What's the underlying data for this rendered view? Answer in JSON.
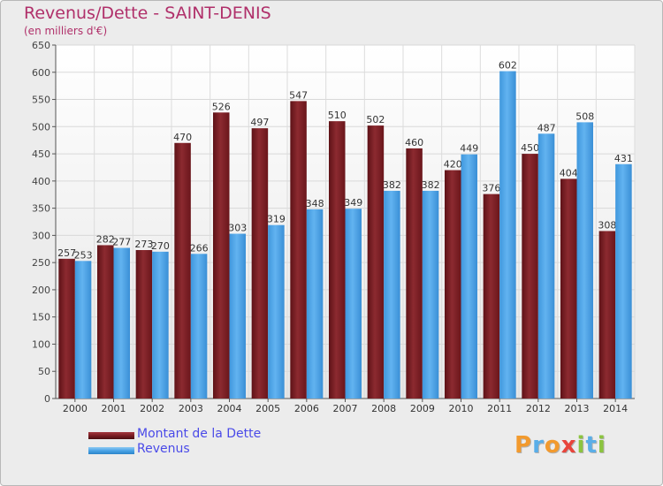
{
  "header": {
    "title": "Revenus/Dette - SAINT-DENIS",
    "subtitle": "(en milliers d'€)"
  },
  "legend": {
    "items": [
      {
        "label": "Montant de la Dette",
        "color": "#7a1d22"
      },
      {
        "label": "Revenus",
        "color": "#4aa3e6"
      }
    ]
  },
  "logo": {
    "text": "Proxiti",
    "letters": [
      {
        "ch": "P",
        "color": "#f29a2e"
      },
      {
        "ch": "r",
        "color": "#5aaee8"
      },
      {
        "ch": "o",
        "color": "#f29a2e"
      },
      {
        "ch": "x",
        "color": "#e8453c"
      },
      {
        "ch": "i",
        "color": "#8bc43f"
      },
      {
        "ch": "t",
        "color": "#5aaee8"
      },
      {
        "ch": "i",
        "color": "#8bc43f"
      }
    ]
  },
  "chart_data": {
    "type": "bar",
    "title": "Revenus/Dette - SAINT-DENIS",
    "subtitle": "(en milliers d'€)",
    "xlabel": "",
    "ylabel": "",
    "ylim": [
      0,
      650
    ],
    "yticks": [
      0,
      50,
      100,
      150,
      200,
      250,
      300,
      350,
      400,
      450,
      500,
      550,
      600,
      650
    ],
    "grid": true,
    "legend_position": "bottom-left",
    "categories": [
      "2000",
      "2001",
      "2002",
      "2003",
      "2004",
      "2005",
      "2006",
      "2007",
      "2008",
      "2009",
      "2010",
      "2011",
      "2012",
      "2013",
      "2014"
    ],
    "series": [
      {
        "name": "Montant de la Dette",
        "color": "#7a1d22",
        "values": [
          257,
          282,
          273,
          470,
          526,
          497,
          547,
          510,
          502,
          460,
          420,
          376,
          450,
          404,
          308
        ]
      },
      {
        "name": "Revenus",
        "color": "#4aa3e6",
        "values": [
          253,
          277,
          270,
          266,
          303,
          319,
          348,
          349,
          382,
          382,
          449,
          602,
          487,
          508,
          431
        ]
      }
    ]
  }
}
